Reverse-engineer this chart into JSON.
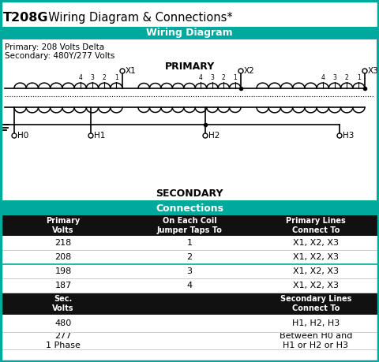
{
  "title_bold": "T208G",
  "title_rest": "  Wiring Diagram & Connections*",
  "teal_color": "#00A99D",
  "dark_bg": "#111111",
  "white_bg": "#ffffff",
  "light_bg": "#f5f5f5",
  "wiring_header": "Wiring Diagram",
  "connections_header": "Connections",
  "primary_text1": "Primary: 208 Volts Delta",
  "primary_text2": "Secondary: 480Y/277 Volts",
  "primary_label": "PRIMARY",
  "secondary_label": "SECONDARY",
  "tap_labels": [
    "4",
    "3",
    "2",
    "1"
  ],
  "h_labels": [
    "H0",
    "H1",
    "H2",
    "H3"
  ],
  "x_labels": [
    "X1",
    "X2",
    "X3"
  ],
  "table_headers1": [
    "Primary\nVolts",
    "On Each Coil\nJumper Taps To",
    "Primary Lines\nConnect To"
  ],
  "table_data1": [
    [
      "218",
      "1",
      "X1, X2, X3"
    ],
    [
      "208",
      "2",
      "X1, X2, X3"
    ],
    [
      "198",
      "3",
      "X1, X2, X3"
    ],
    [
      "187",
      "4",
      "X1, X2, X3"
    ]
  ],
  "table_headers2": [
    "Sec.\nVolts",
    "",
    "Secondary Lines\nConnect To"
  ],
  "table_data2": [
    [
      "480",
      "",
      "H1, H2, H3"
    ],
    [
      "277\n1 Phase",
      "",
      "Between H0 and\nH1 or H2 or H3"
    ]
  ],
  "teal_row_after": 1,
  "col_splits": [
    0.0,
    0.333,
    0.667,
    1.0
  ]
}
